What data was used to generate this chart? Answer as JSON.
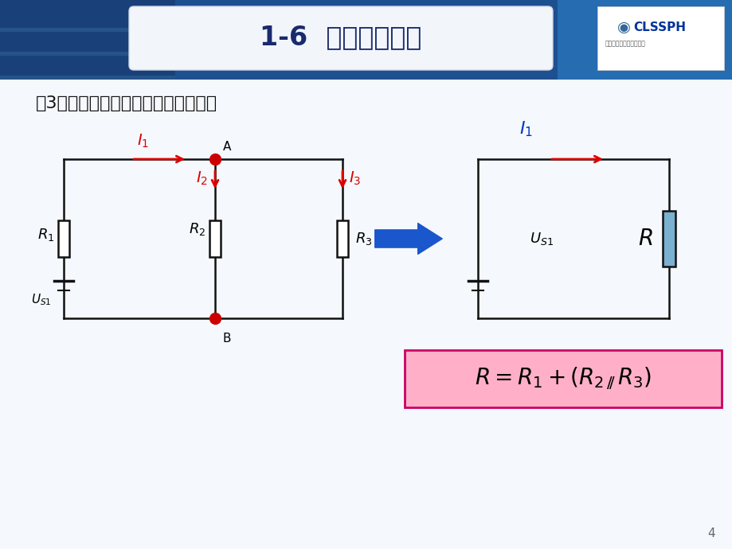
{
  "title": "1-6  基尔霍夫定律",
  "subtitle": "（3）电阻混联电路的分析计算方法？",
  "page_number": "4",
  "bg_color": "#f0f4f8",
  "header_bar_color": "#2060b0",
  "title_box_color": "#f0f4fa",
  "title_text_color": "#1a2a6e",
  "circuit_color": "#111111",
  "node_color": "#cc0000",
  "arrow_color": "#dd0000",
  "label_blue": "#0033cc",
  "blue_arrow_color": "#1a56cc",
  "resistor_fill": "#7ab0d0",
  "formula_bg": "#ffb0c8",
  "formula_border": "#cc0066",
  "clssph_text": "CLSSPH",
  "clssph_sub": "中国劳动社会保障出版社"
}
